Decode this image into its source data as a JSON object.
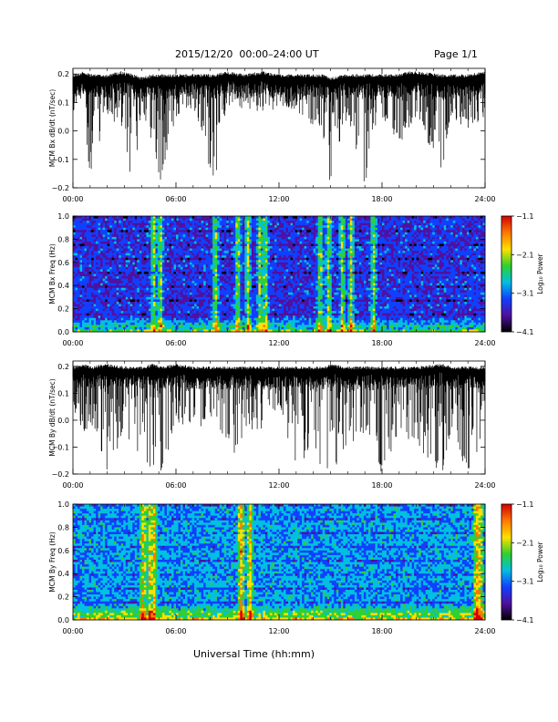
{
  "header": {
    "title": "2015/12/20  00:00–24:00 UT",
    "page": "Page 1/1"
  },
  "footer": {
    "xlabel": "Universal Time (hh:mm)"
  },
  "chart_data": [
    {
      "type": "line",
      "ylabel": "MCM Bx dB/dt (nT/sec)",
      "xlim": [
        "00:00",
        "24:00"
      ],
      "xticks": [
        "00:00",
        "06:00",
        "12:00",
        "18:00",
        "24:00"
      ],
      "ylim": [
        -0.2,
        0.22
      ],
      "yticks": [
        "0.2",
        "0.1",
        "0.0",
        "−0.1",
        "−0.2"
      ],
      "series": [
        {
          "x_hours": [
            0.0,
            0.7,
            1.0,
            2.0,
            2.8,
            3.5,
            4.0,
            4.7,
            5.1,
            6.0,
            7.0,
            8.2,
            9.0,
            10.0,
            11.0,
            12.0,
            13.2,
            14.5,
            15.0,
            16.0,
            17.0,
            17.5,
            18.0,
            19.0,
            19.5,
            20.0,
            21.5,
            22.0,
            23.0,
            24.0
          ],
          "upper": [
            0.2,
            0.21,
            0.2,
            0.2,
            0.21,
            0.2,
            0.19,
            0.2,
            0.2,
            0.2,
            0.2,
            0.2,
            0.21,
            0.2,
            0.21,
            0.2,
            0.2,
            0.2,
            0.19,
            0.2,
            0.2,
            0.2,
            0.2,
            0.2,
            0.21,
            0.21,
            0.2,
            0.2,
            0.2,
            0.21
          ],
          "lower": [
            0.05,
            0.0,
            -0.16,
            0.05,
            0.0,
            -0.2,
            0.05,
            -0.05,
            -0.2,
            0.05,
            0.1,
            -0.2,
            0.1,
            0.1,
            0.05,
            0.12,
            0.05,
            0.0,
            -0.2,
            0.05,
            -0.2,
            0.0,
            0.05,
            -0.05,
            0.0,
            0.05,
            -0.15,
            0.05,
            0.0,
            0.05
          ]
        }
      ]
    },
    {
      "type": "heatmap",
      "ylabel": "MCM Bx Freq (Hz)",
      "xlim": [
        "00:00",
        "24:00"
      ],
      "xticks": [
        "00:00",
        "06:00",
        "12:00",
        "18:00",
        "24:00"
      ],
      "ylim": [
        0,
        1.0
      ],
      "yticks": [
        "1.0",
        "0.8",
        "0.6",
        "0.4",
        "0.2",
        "0.0"
      ],
      "colorbar": {
        "label": "Log₁₀ Power",
        "ticks": [
          "−1.1",
          "−2.1",
          "−3.1",
          "−4.1"
        ],
        "colors": [
          "#d40000",
          "#ff7700",
          "#ffe000",
          "#30d030",
          "#00c0e0",
          "#1040ff",
          "#5010a0",
          "#000000"
        ]
      },
      "base_level": "blue",
      "low_freq_band_level": "green-yellow",
      "active_hours": [
        4.7,
        5.1,
        8.3,
        9.6,
        10.2,
        10.9,
        11.2,
        14.4,
        14.9,
        15.7,
        16.2,
        17.5
      ]
    },
    {
      "type": "line",
      "ylabel": "MCM By dB/dt (nT/sec)",
      "xlim": [
        "00:00",
        "24:00"
      ],
      "xticks": [
        "00:00",
        "06:00",
        "12:00",
        "18:00",
        "24:00"
      ],
      "ylim": [
        -0.2,
        0.22
      ],
      "yticks": [
        "0.2",
        "0.1",
        "0.0",
        "−0.1",
        "−0.2"
      ],
      "series": [
        {
          "x_hours": [
            0.0,
            0.7,
            1.0,
            2.0,
            3.0,
            4.0,
            4.7,
            5.2,
            6.0,
            7.0,
            8.0,
            9.0,
            10.0,
            11.0,
            12.0,
            13.0,
            14.0,
            14.6,
            15.0,
            16.0,
            17.0,
            18.0,
            19.0,
            20.0,
            21.5,
            22.0,
            23.0,
            24.0
          ],
          "upper": [
            0.2,
            0.21,
            0.2,
            0.21,
            0.2,
            0.2,
            0.21,
            0.2,
            0.21,
            0.2,
            0.2,
            0.2,
            0.2,
            0.2,
            0.2,
            0.2,
            0.2,
            0.2,
            0.21,
            0.2,
            0.2,
            0.2,
            0.2,
            0.2,
            0.21,
            0.2,
            0.2,
            0.2
          ],
          "lower": [
            0.0,
            -0.05,
            0.0,
            -0.2,
            -0.05,
            -0.15,
            -0.2,
            -0.2,
            0.0,
            -0.05,
            0.0,
            -0.2,
            -0.05,
            -0.05,
            0.05,
            -0.2,
            -0.1,
            -0.2,
            -0.2,
            -0.1,
            -0.05,
            -0.2,
            -0.05,
            -0.1,
            -0.2,
            -0.05,
            -0.2,
            -0.05
          ]
        }
      ]
    },
    {
      "type": "heatmap",
      "ylabel": "MCM By Freq (Hz)",
      "xlim": [
        "00:00",
        "24:00"
      ],
      "xticks": [
        "00:00",
        "06:00",
        "12:00",
        "18:00",
        "24:00"
      ],
      "ylim": [
        0,
        1.0
      ],
      "yticks": [
        "1.0",
        "0.8",
        "0.6",
        "0.4",
        "0.2",
        "0.0"
      ],
      "colorbar": {
        "label": "Log₁₀ Power",
        "ticks": [
          "−1.1",
          "−2.1",
          "−3.1",
          "−4.1"
        ],
        "colors": [
          "#d40000",
          "#ff7700",
          "#ffe000",
          "#30d030",
          "#00c0e0",
          "#1040ff",
          "#5010a0",
          "#000000"
        ]
      },
      "base_level": "cyan-blue",
      "low_freq_band_level": "green-yellow",
      "active_hours": [
        4.1,
        4.5,
        4.7,
        9.8,
        10.3,
        23.5,
        23.7
      ]
    }
  ]
}
